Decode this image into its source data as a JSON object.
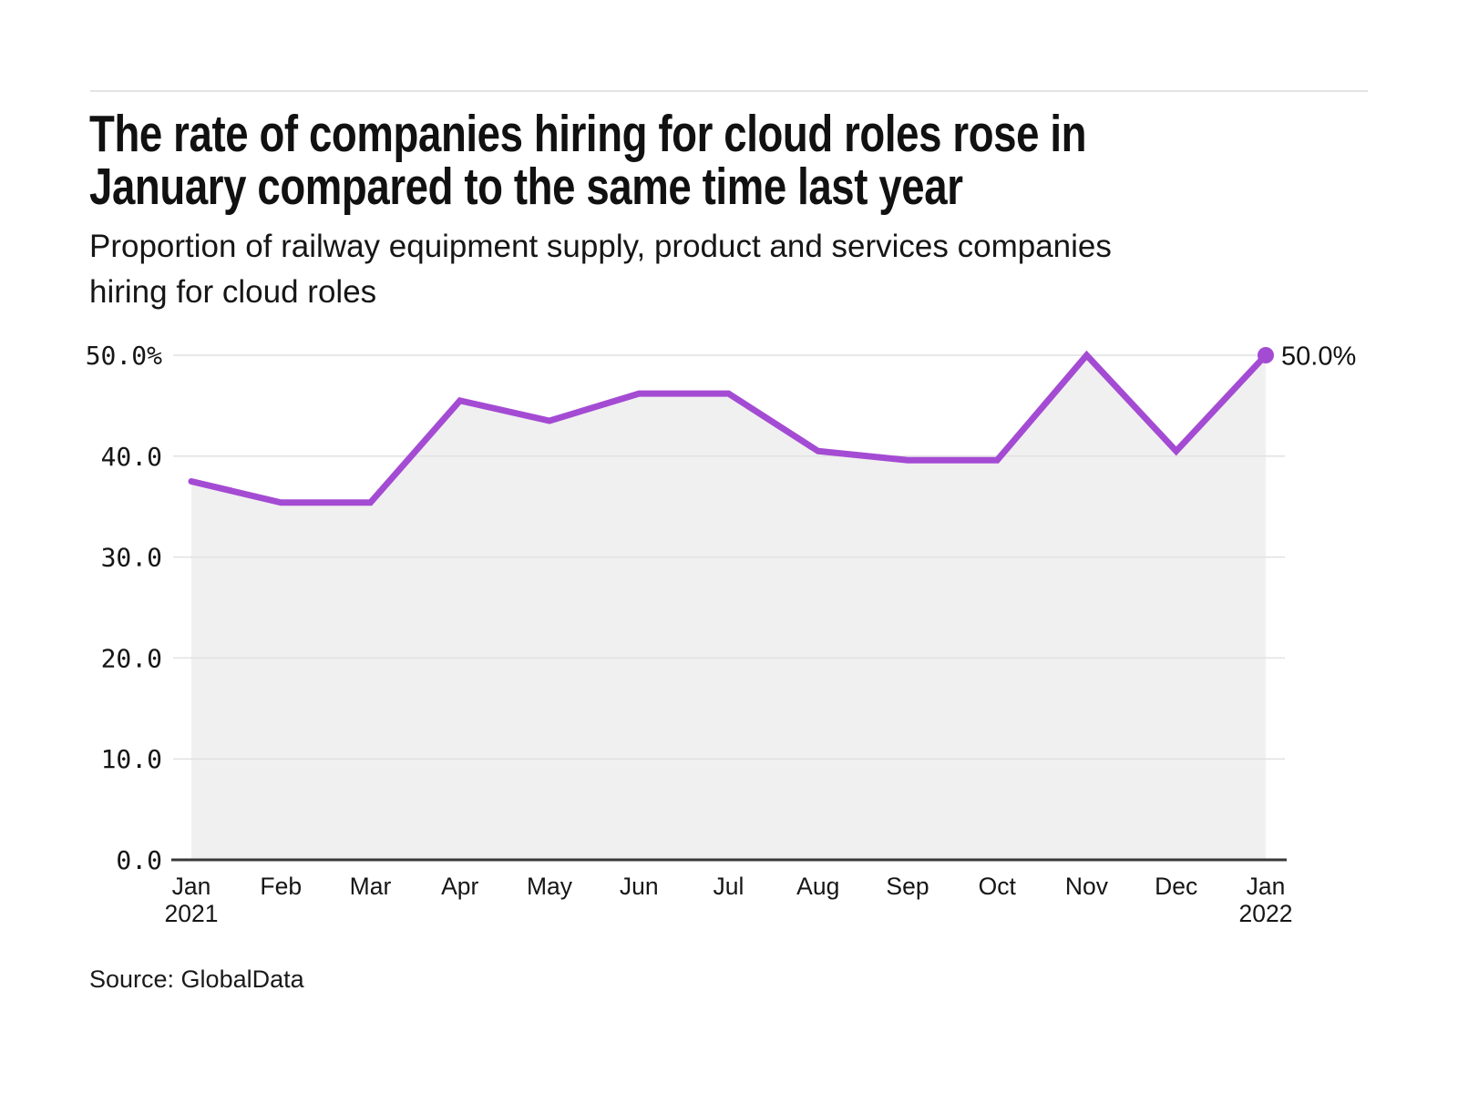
{
  "header": {
    "title_line1": "The rate of companies hiring for cloud roles rose in",
    "title_line2": "January compared to the same time last year",
    "subtitle_line1": "Proportion of railway equipment supply, product and services companies",
    "subtitle_line2": "hiring for cloud roles"
  },
  "footer": {
    "source": "Source: GlobalData"
  },
  "chart_data": {
    "type": "area",
    "title": "Proportion of railway equipment supply, product and services companies hiring for cloud roles",
    "categories": [
      "Jan 2021",
      "Feb",
      "Mar",
      "Apr",
      "May",
      "Jun",
      "Jul",
      "Aug",
      "Sep",
      "Oct",
      "Nov",
      "Dec",
      "Jan 2022"
    ],
    "values": [
      37.5,
      35.4,
      35.4,
      45.5,
      43.5,
      46.2,
      46.2,
      40.5,
      39.6,
      39.6,
      50.0,
      40.5,
      50.0
    ],
    "months": [
      "Jan",
      "Feb",
      "Mar",
      "Apr",
      "May",
      "Jun",
      "Jul",
      "Aug",
      "Sep",
      "Oct",
      "Nov",
      "Dec",
      "Jan"
    ],
    "years": [
      "2021",
      "",
      "",
      "",
      "",
      "",
      "",
      "",
      "",
      "",
      "",
      "",
      "2022"
    ],
    "ylabel": "",
    "xlabel": "",
    "ylim": [
      0,
      50
    ],
    "yticks": [
      0,
      10,
      20,
      30,
      40,
      50
    ],
    "ytick_labels": [
      "0.0",
      "10.0",
      "20.0",
      "30.0",
      "40.0",
      "50.0%"
    ],
    "end_annotation": "50.0%",
    "grid": true,
    "legend": "none",
    "colors": {
      "line": "#A44BD3",
      "area": "#F0F0F0",
      "grid": "#E2E2E2",
      "axis": "#383838",
      "text": "#161616"
    }
  }
}
